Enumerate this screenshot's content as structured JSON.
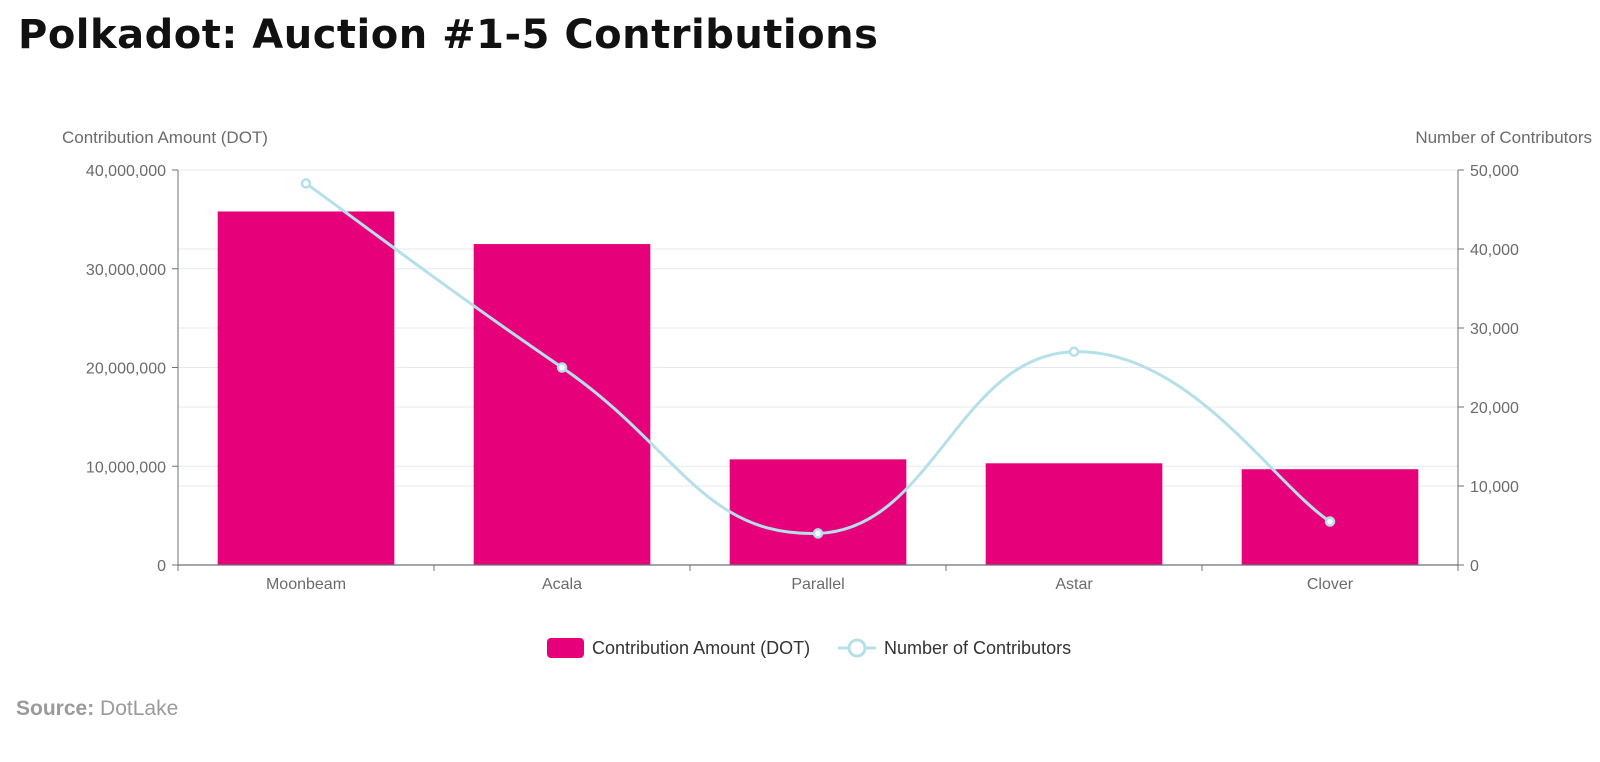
{
  "title": "Polkadot: Auction #1-5 Contributions",
  "source": {
    "label": "Source:",
    "value": "DotLake"
  },
  "chart_data": {
    "type": "bar",
    "categories": [
      "Moonbeam",
      "Acala",
      "Parallel",
      "Astar",
      "Clover"
    ],
    "series": [
      {
        "name": "Contribution Amount (DOT)",
        "type": "bar",
        "axis": "left",
        "color": "#e6007a",
        "values": [
          35800000,
          32500000,
          10700000,
          10300000,
          9700000
        ]
      },
      {
        "name": "Number of Contributors",
        "type": "line",
        "smooth": true,
        "axis": "right",
        "color": "#b5e0ea",
        "values": [
          48300,
          25000,
          4000,
          27000,
          5500
        ]
      }
    ],
    "ylabel_left": "Contribution Amount (DOT)",
    "ylabel_right": "Number of Contributors",
    "ylim_left": [
      0,
      40000000
    ],
    "ylim_right": [
      0,
      50000
    ],
    "yticks_left": [
      "0",
      "10,000,000",
      "20,000,000",
      "30,000,000",
      "40,000,000"
    ],
    "yticks_right": [
      "0",
      "10,000",
      "20,000",
      "30,000",
      "40,000",
      "50,000"
    ],
    "grid": true,
    "legend_position": "bottom"
  }
}
